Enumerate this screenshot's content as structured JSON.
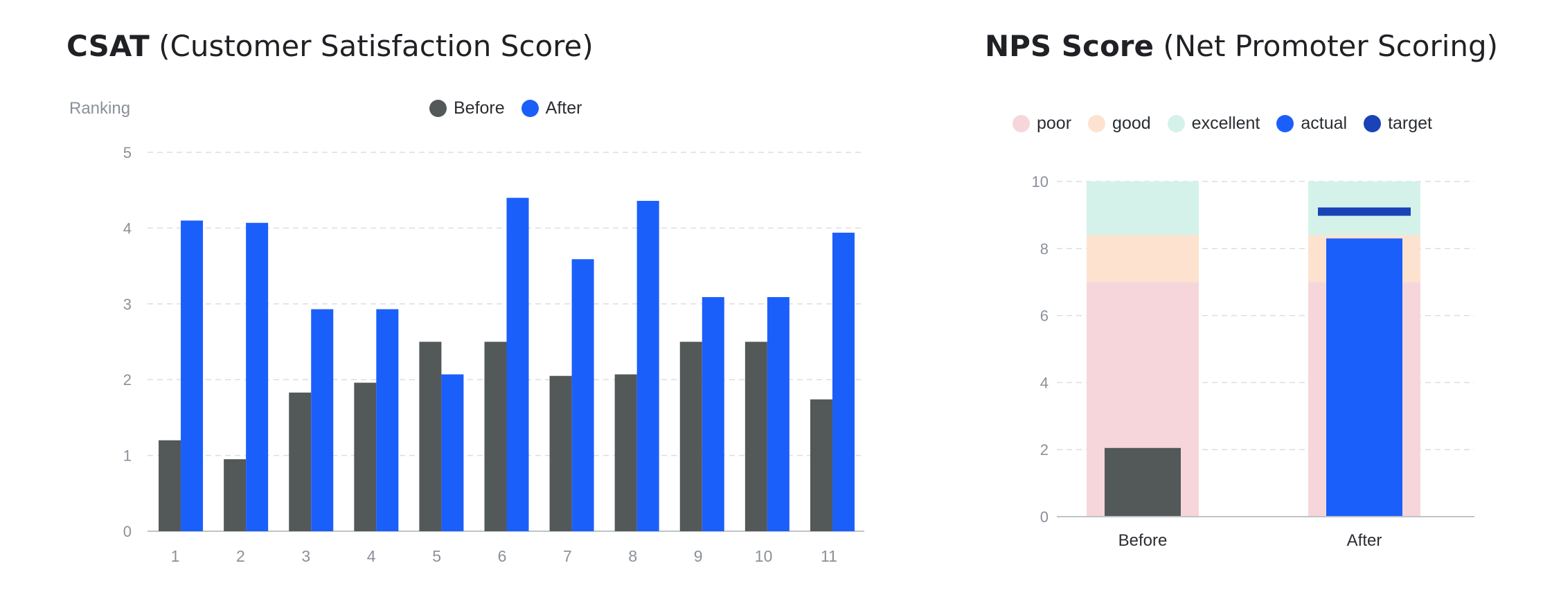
{
  "colors": {
    "before": "#535859",
    "after": "#1b5ffb",
    "poor": "#f6d6da",
    "good": "#fde3cf",
    "excellent": "#d4f2ea",
    "actual": "#1b5ffb",
    "target": "#1943b6",
    "grid": "#dcdde0",
    "axis": "#bfc3c8",
    "tick": "#8a9099"
  },
  "csat": {
    "title_bold": "CSAT",
    "title_rest": "(Customer Satisfaction Score)",
    "ylabel": "Ranking",
    "legend": [
      {
        "label": "Before",
        "color_key": "before"
      },
      {
        "label": "After",
        "color_key": "after"
      }
    ]
  },
  "nps": {
    "title_bold": "NPS Score",
    "title_rest": "(Net Promoter Scoring)",
    "legend": [
      {
        "label": "poor",
        "color_key": "poor"
      },
      {
        "label": "good",
        "color_key": "good"
      },
      {
        "label": "excellent",
        "color_key": "excellent"
      },
      {
        "label": "actual",
        "color_key": "actual"
      },
      {
        "label": "target",
        "color_key": "target"
      }
    ]
  },
  "chart_data": [
    {
      "type": "bar",
      "title": "CSAT (Customer Satisfaction Score)",
      "ylabel": "Ranking",
      "xlabel": "",
      "categories": [
        "1",
        "2",
        "3",
        "4",
        "5",
        "6",
        "7",
        "8",
        "9",
        "10",
        "11"
      ],
      "series": [
        {
          "name": "Before",
          "values": [
            1.2,
            0.95,
            1.83,
            1.96,
            2.5,
            2.5,
            2.05,
            2.07,
            2.5,
            2.5,
            1.74
          ]
        },
        {
          "name": "After",
          "values": [
            4.1,
            4.07,
            2.93,
            2.93,
            2.07,
            4.4,
            3.59,
            4.36,
            3.09,
            3.09,
            3.94
          ]
        }
      ],
      "ylim": [
        0,
        5
      ],
      "yticks": [
        0,
        1,
        2,
        3,
        4,
        5
      ],
      "grid": true,
      "legend_position": "top-center"
    },
    {
      "type": "bar",
      "title": "NPS Score (Net Promoter Scoring)",
      "xlabel": "",
      "ylabel": "",
      "categories": [
        "Before",
        "After"
      ],
      "ranges": {
        "poor": [
          0,
          7
        ],
        "good": [
          7,
          8.4
        ],
        "excellent": [
          8.4,
          10
        ]
      },
      "series": [
        {
          "name": "actual",
          "values": [
            2.05,
            8.3
          ]
        },
        {
          "name": "target",
          "values": [
            null,
            9.1
          ]
        }
      ],
      "ylim": [
        0,
        10
      ],
      "yticks": [
        0,
        2,
        4,
        6,
        8,
        10
      ],
      "grid": true,
      "legend_position": "top"
    }
  ]
}
